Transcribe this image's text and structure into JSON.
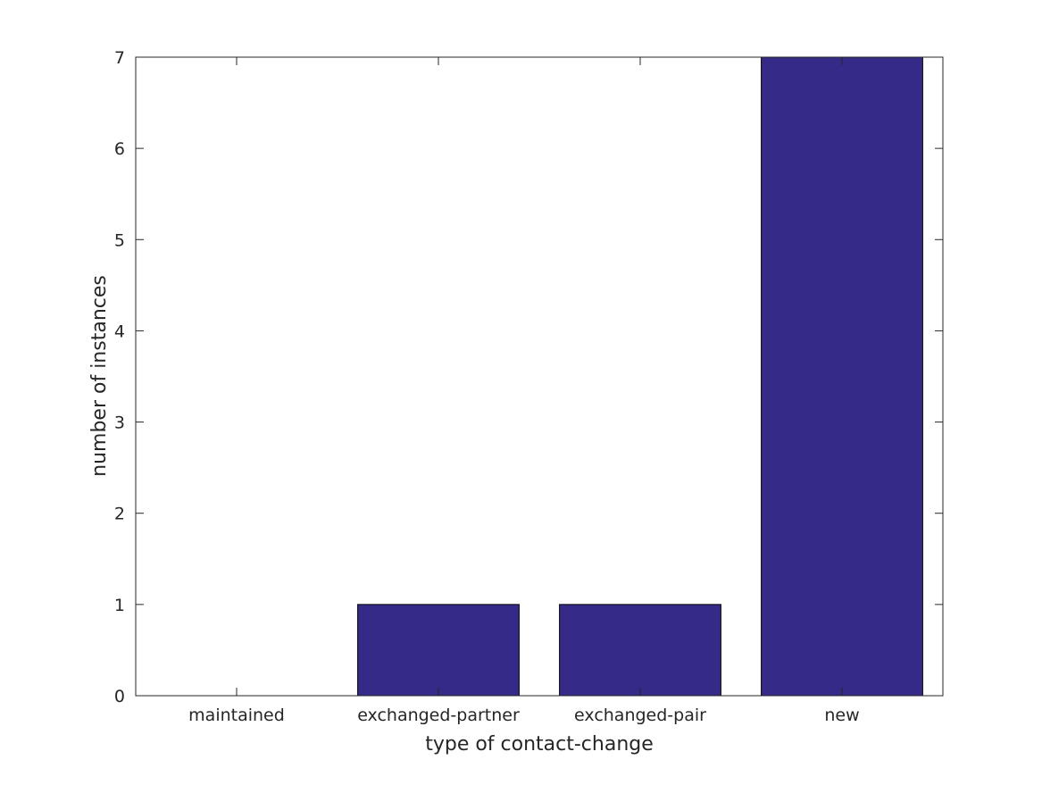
{
  "chart_data": {
    "type": "bar",
    "categories": [
      "maintained",
      "exchanged-partner",
      "exchanged-pair",
      "new"
    ],
    "values": [
      0,
      1,
      1,
      7
    ],
    "xlabel": "type of contact-change",
    "ylabel": "number of instances",
    "ylim": [
      0,
      7
    ],
    "yticks": [
      0,
      1,
      2,
      3,
      4,
      5,
      6,
      7
    ],
    "grid": false,
    "legend": "none",
    "colors": {
      "bar_fill": "#352a87",
      "bar_edge": "#000000",
      "axis": "#262626",
      "text": "#262626"
    }
  }
}
